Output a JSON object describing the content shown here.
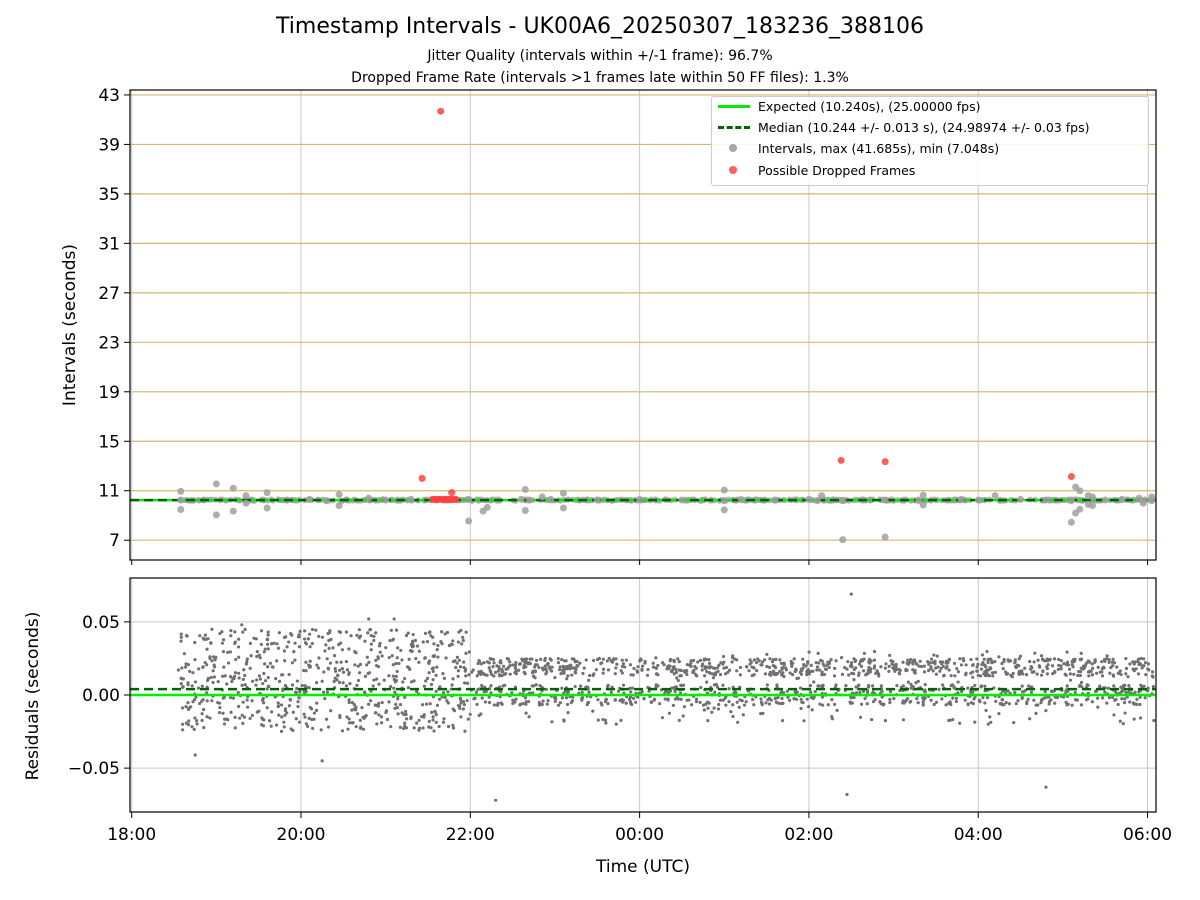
{
  "header": {
    "title": "Timestamp Intervals - UK00A6_20250307_183236_388106",
    "subtitle1": "Jitter Quality (intervals within +/-1 frame): 96.7%",
    "subtitle2": "Dropped Frame Rate (intervals >1 frames late within 50 FF files): 1.3%"
  },
  "legend": {
    "expected": "Expected (10.240s), (25.00000 fps)",
    "median": "Median (10.244 +/- 0.013 s), (24.98974 +/- 0.03 fps)",
    "intervals": "Intervals, max (41.685s), min (7.048s)",
    "dropped": "Possible Dropped Frames"
  },
  "colors": {
    "expected": "#00ee00",
    "median": "#006400",
    "points": "#808080",
    "dropped": "#ff0000",
    "hgrid_top": "#d2b96e",
    "grid": "#c8c8c8"
  },
  "chart_data": [
    {
      "type": "scatter",
      "ylabel": "Intervals (seconds)",
      "xlim": [
        -0.02,
        12.1
      ],
      "ylim": [
        5.4,
        43.4
      ],
      "yticks": [
        7,
        11,
        15,
        19,
        23,
        27,
        31,
        35,
        39,
        43
      ],
      "ytick_labels": [
        "7",
        "11",
        "15",
        "19",
        "23",
        "27",
        "31",
        "35",
        "39",
        "43"
      ],
      "x_unit": "hours since 18:00 UTC",
      "expected": 10.24,
      "median": 10.244,
      "series": [
        {
          "name": "Intervals, max (41.685s), min (7.048s)",
          "points": [
            [
              0.58,
              10.24
            ],
            [
              0.58,
              10.95
            ],
            [
              0.58,
              9.48
            ],
            [
              1.0,
              11.55
            ],
            [
              1.0,
              9.05
            ],
            [
              1.2,
              11.2
            ],
            [
              1.2,
              9.35
            ],
            [
              1.35,
              10.6
            ],
            [
              1.35,
              10.0
            ],
            [
              1.6,
              10.85
            ],
            [
              1.6,
              9.6
            ],
            [
              2.1,
              10.3
            ],
            [
              2.3,
              10.2
            ],
            [
              2.45,
              10.7
            ],
            [
              2.45,
              9.8
            ],
            [
              2.8,
              10.4
            ],
            [
              3.0,
              10.25
            ],
            [
              3.3,
              10.3
            ],
            [
              3.6,
              10.25
            ],
            [
              3.8,
              10.3
            ],
            [
              3.98,
              10.3
            ],
            [
              3.98,
              8.55
            ],
            [
              4.15,
              9.35
            ],
            [
              4.2,
              9.65
            ],
            [
              4.6,
              10.3
            ],
            [
              4.7,
              10.25
            ],
            [
              4.65,
              11.1
            ],
            [
              4.65,
              9.4
            ],
            [
              4.85,
              10.5
            ],
            [
              4.95,
              10.3
            ],
            [
              5.1,
              10.8
            ],
            [
              5.1,
              9.6
            ],
            [
              5.5,
              10.25
            ],
            [
              6.0,
              10.3
            ],
            [
              6.5,
              10.25
            ],
            [
              7.0,
              10.2
            ],
            [
              7.0,
              11.05
            ],
            [
              7.0,
              9.45
            ],
            [
              7.2,
              10.3
            ],
            [
              7.6,
              10.25
            ],
            [
              8.0,
              10.3
            ],
            [
              8.1,
              10.2
            ],
            [
              8.15,
              10.6
            ],
            [
              8.4,
              10.2
            ],
            [
              8.4,
              7.05
            ],
            [
              8.9,
              10.25
            ],
            [
              8.9,
              7.25
            ],
            [
              9.3,
              10.2
            ],
            [
              9.35,
              10.65
            ],
            [
              9.35,
              9.85
            ],
            [
              9.8,
              10.3
            ],
            [
              10.0,
              10.25
            ],
            [
              10.2,
              10.6
            ],
            [
              10.5,
              10.3
            ],
            [
              10.8,
              10.25
            ],
            [
              11.1,
              10.2
            ],
            [
              11.1,
              8.45
            ],
            [
              11.15,
              11.3
            ],
            [
              11.15,
              9.2
            ],
            [
              11.2,
              11.0
            ],
            [
              11.2,
              9.5
            ],
            [
              11.3,
              10.6
            ],
            [
              11.3,
              9.9
            ],
            [
              11.35,
              10.5
            ],
            [
              11.35,
              9.8
            ],
            [
              11.5,
              10.25
            ],
            [
              11.7,
              10.3
            ],
            [
              11.9,
              10.4
            ],
            [
              11.95,
              10.2
            ],
            [
              11.95,
              10.0
            ],
            [
              12.05,
              10.5
            ],
            [
              12.05,
              10.2
            ]
          ]
        },
        {
          "name": "Possible Dropped Frames",
          "points": [
            [
              3.65,
              41.685
            ],
            [
              3.43,
              12.0
            ],
            [
              3.55,
              10.3
            ],
            [
              3.58,
              10.3
            ],
            [
              3.6,
              10.3
            ],
            [
              3.63,
              10.3
            ],
            [
              3.65,
              10.3
            ],
            [
              3.68,
              10.3
            ],
            [
              3.7,
              10.3
            ],
            [
              3.73,
              10.3
            ],
            [
              3.75,
              10.3
            ],
            [
              3.78,
              10.3
            ],
            [
              3.8,
              10.3
            ],
            [
              3.83,
              10.3
            ],
            [
              3.78,
              10.85
            ],
            [
              8.38,
              13.45
            ],
            [
              8.9,
              13.35
            ],
            [
              11.1,
              12.15
            ]
          ]
        }
      ]
    },
    {
      "type": "scatter",
      "xlabel": "Time (UTC)",
      "ylabel": "Residuals (seconds)",
      "xlim": [
        -0.02,
        12.1
      ],
      "ylim": [
        -0.08,
        0.08
      ],
      "yticks": [
        -0.05,
        0.0,
        0.05
      ],
      "ytick_labels": [
        "−0.05",
        "0.00",
        "0.05"
      ],
      "xticks": [
        0,
        2,
        4,
        6,
        8,
        10,
        12
      ],
      "xtick_labels": [
        "18:00",
        "20:00",
        "22:00",
        "00:00",
        "02:00",
        "04:00",
        "06:00"
      ],
      "expected": 0.0,
      "median": 0.004,
      "x_range": [
        0.55,
        12.1
      ],
      "band_early": [
        -0.025,
        0.045
      ],
      "band_late": [
        -0.02,
        0.03
      ],
      "outliers": [
        [
          0.75,
          -0.041
        ],
        [
          2.25,
          -0.045
        ],
        [
          4.3,
          -0.072
        ],
        [
          8.5,
          0.069
        ],
        [
          8.45,
          -0.068
        ],
        [
          10.8,
          -0.063
        ],
        [
          1.3,
          0.048
        ],
        [
          2.8,
          0.052
        ],
        [
          3.1,
          0.052
        ]
      ]
    }
  ]
}
